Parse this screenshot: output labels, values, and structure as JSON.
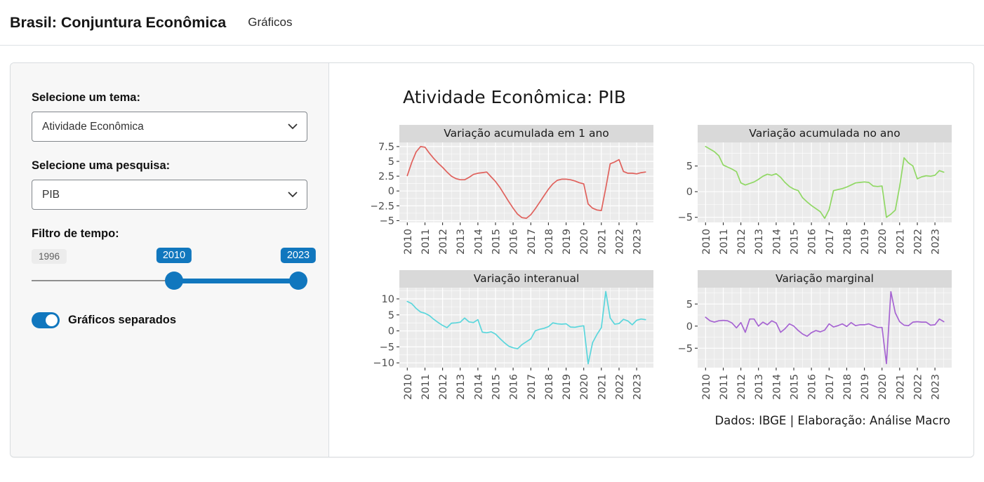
{
  "header": {
    "title": "Brasil: Conjuntura Econômica",
    "nav": [
      {
        "label": "Gráficos"
      }
    ]
  },
  "sidebar": {
    "tema_label": "Selecione um tema:",
    "tema_value": "Atividade Econômica",
    "pesquisa_label": "Selecione uma pesquisa:",
    "pesquisa_value": "PIB",
    "tempo_label": "Filtro de tempo:",
    "slider": {
      "min_label": "1996",
      "from": "2010",
      "to": "2023"
    },
    "toggle_label": "Gráficos separados",
    "toggle_state": "on",
    "accent_color": "#1177be"
  },
  "main": {
    "title": "Atividade Econômica: PIB",
    "caption": "Dados: IBGE | Elaboração: Análise Macro"
  },
  "chart_data": {
    "type": "line",
    "title": "Atividade Econômica: PIB",
    "caption": "Dados: IBGE | Elaboração: Análise Macro",
    "grid": "on",
    "x_start": 2010,
    "x_step": 0.25,
    "x_domain": [
      2009.55,
      2023.95
    ],
    "x_ticks": [
      2010,
      2011,
      2012,
      2013,
      2014,
      2015,
      2016,
      2017,
      2018,
      2019,
      2020,
      2021,
      2022,
      2023
    ],
    "facets": [
      {
        "title": "Variação acumulada em 1 ano",
        "color": "#e0615c",
        "y_ticks": [
          7.5,
          5,
          2.5,
          0,
          -2.5,
          -5
        ],
        "y_domain": [
          -5.3,
          8.2
        ],
        "values": [
          2.6,
          4.8,
          6.6,
          7.5,
          7.4,
          6.4,
          5.5,
          4.7,
          4.0,
          3.2,
          2.5,
          2.1,
          1.9,
          1.9,
          2.3,
          2.8,
          3.0,
          3.1,
          3.2,
          2.4,
          1.6,
          0.6,
          -0.6,
          -1.8,
          -2.9,
          -3.9,
          -4.5,
          -4.6,
          -4.0,
          -3.0,
          -1.9,
          -0.8,
          0.3,
          1.2,
          1.8,
          2.0,
          2.0,
          1.9,
          1.7,
          1.4,
          1.2,
          -2.2,
          -2.9,
          -3.2,
          -3.3,
          0.5,
          4.6,
          4.9,
          5.3,
          3.3,
          3.0,
          3.0,
          2.9,
          3.1,
          3.2
        ]
      },
      {
        "title": "Variação acumulada no ano",
        "color": "#90d864",
        "y_ticks": [
          5,
          0,
          -5
        ],
        "y_domain": [
          -6.0,
          9.6
        ],
        "values": [
          8.8,
          8.3,
          7.8,
          7.0,
          5.2,
          4.8,
          4.4,
          3.9,
          1.7,
          1.3,
          1.6,
          1.9,
          2.4,
          3.0,
          3.4,
          3.2,
          3.5,
          2.8,
          1.8,
          1.0,
          0.5,
          0.2,
          -1.2,
          -2.0,
          -2.7,
          -3.3,
          -3.9,
          -5.2,
          -3.5,
          0.2,
          0.4,
          0.6,
          0.9,
          1.3,
          1.7,
          1.8,
          1.9,
          1.8,
          1.1,
          1.0,
          1.1,
          -5.0,
          -4.4,
          -3.6,
          1.0,
          6.6,
          5.6,
          5.0,
          2.5,
          2.9,
          3.1,
          3.0,
          3.2,
          4.1,
          3.8
        ]
      },
      {
        "title": "Variação interanual",
        "color": "#5ad6dc",
        "y_ticks": [
          10,
          5,
          0,
          -5,
          -10
        ],
        "y_domain": [
          -11.5,
          13.5
        ],
        "values": [
          9.2,
          8.5,
          7.0,
          5.9,
          5.5,
          4.8,
          3.6,
          2.6,
          1.7,
          1.0,
          2.4,
          2.5,
          2.7,
          4.0,
          2.8,
          2.6,
          3.5,
          -0.4,
          -0.6,
          -0.3,
          -1.0,
          -2.4,
          -3.7,
          -4.8,
          -5.3,
          -5.6,
          -4.3,
          -3.4,
          -2.5,
          0.0,
          0.5,
          0.8,
          1.3,
          2.5,
          2.2,
          2.1,
          2.2,
          1.2,
          1.1,
          1.4,
          1.6,
          -10.3,
          -3.7,
          -1.1,
          1.0,
          12.3,
          4.0,
          2.1,
          2.3,
          3.6,
          3.1,
          1.9,
          3.3,
          3.7,
          3.5
        ]
      },
      {
        "title": "Variação marginal",
        "color": "#a664d2",
        "y_ticks": [
          5,
          0,
          -5
        ],
        "y_domain": [
          -9.4,
          8.7
        ],
        "values": [
          2.0,
          1.2,
          0.9,
          1.2,
          1.3,
          1.2,
          0.7,
          -0.4,
          0.8,
          -1.4,
          1.6,
          1.6,
          0.0,
          0.9,
          0.3,
          1.2,
          0.7,
          -1.4,
          -0.6,
          0.5,
          0.0,
          -1.0,
          -1.8,
          -2.3,
          -1.5,
          -1.0,
          -1.3,
          -0.9,
          0.5,
          -0.2,
          0.1,
          0.5,
          -0.1,
          0.8,
          0.1,
          0.3,
          0.3,
          0.5,
          0.1,
          -0.3,
          -0.3,
          -8.5,
          7.8,
          3.0,
          1.0,
          0.2,
          0.1,
          0.9,
          1.0,
          0.9,
          0.9,
          0.2,
          0.3,
          1.6,
          1.0
        ]
      }
    ]
  }
}
